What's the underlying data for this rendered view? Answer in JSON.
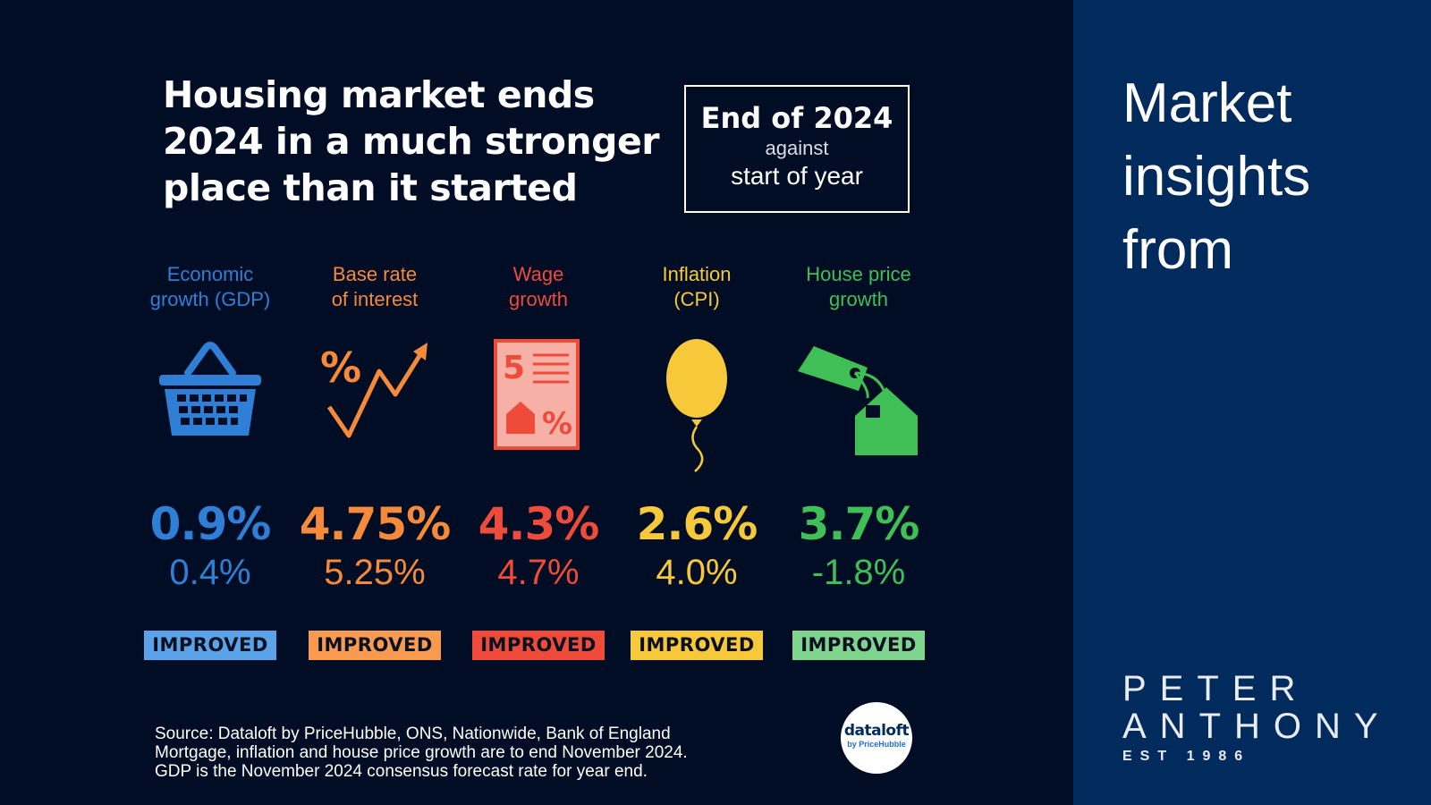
{
  "headline": {
    "line1": "Housing market ends",
    "line2": "2024 in a much stronger",
    "line3": "place than it started"
  },
  "period": {
    "main": "End of 2024",
    "against": "against",
    "start": "start of year"
  },
  "metrics": [
    {
      "label_line1": "Economic",
      "label_line2": "growth (GDP)",
      "end_value": "0.9%",
      "start_value": "0.4%",
      "status": "IMPROVED",
      "icon": "shopping-basket-icon",
      "color": "#2f7fd6",
      "badge_color": "#5aa3e8"
    },
    {
      "label_line1": "Base rate",
      "label_line2": "of interest",
      "end_value": "4.75%",
      "start_value": "5.25%",
      "status": "IMPROVED",
      "icon": "percent-zigzag-arrow-icon",
      "color": "#f58a3a",
      "badge_color": "#f89a50"
    },
    {
      "label_line1": "Wage",
      "label_line2": "growth",
      "end_value": "4.3%",
      "start_value": "4.7%",
      "status": "IMPROVED",
      "icon": "payslip-document-icon",
      "color": "#ee4b3b",
      "badge_color": "#ee4b3b"
    },
    {
      "label_line1": "Inflation",
      "label_line2": "(CPI)",
      "end_value": "2.6%",
      "start_value": "4.0%",
      "status": "IMPROVED",
      "icon": "balloon-icon",
      "color": "#f7c93a",
      "badge_color": "#f7c93a"
    },
    {
      "label_line1": "House price",
      "label_line2": "growth",
      "end_value": "3.7%",
      "start_value": "-1.8%",
      "status": "IMPROVED",
      "icon": "house-price-tag-icon",
      "color": "#3fbf55",
      "badge_color": "#7fd58d"
    }
  ],
  "source": {
    "line1": "Source: Dataloft by PriceHubble, ONS, Nationwide, Bank of England",
    "line2": "Mortgage, inflation and house price growth are to end November 2024.",
    "line3": "GDP is the November 2024 consensus forecast rate for year end."
  },
  "dataloft_logo": {
    "name": "dataloft",
    "sub": "by PriceHubble"
  },
  "insights": {
    "line1": "Market",
    "line2": "insights",
    "line3": "from"
  },
  "brand": {
    "line1": "PETER",
    "line2": "ANTHONY",
    "line3": "EST 1986"
  },
  "colors": {
    "background": "#000d24",
    "side_panel": "#002b5c"
  }
}
